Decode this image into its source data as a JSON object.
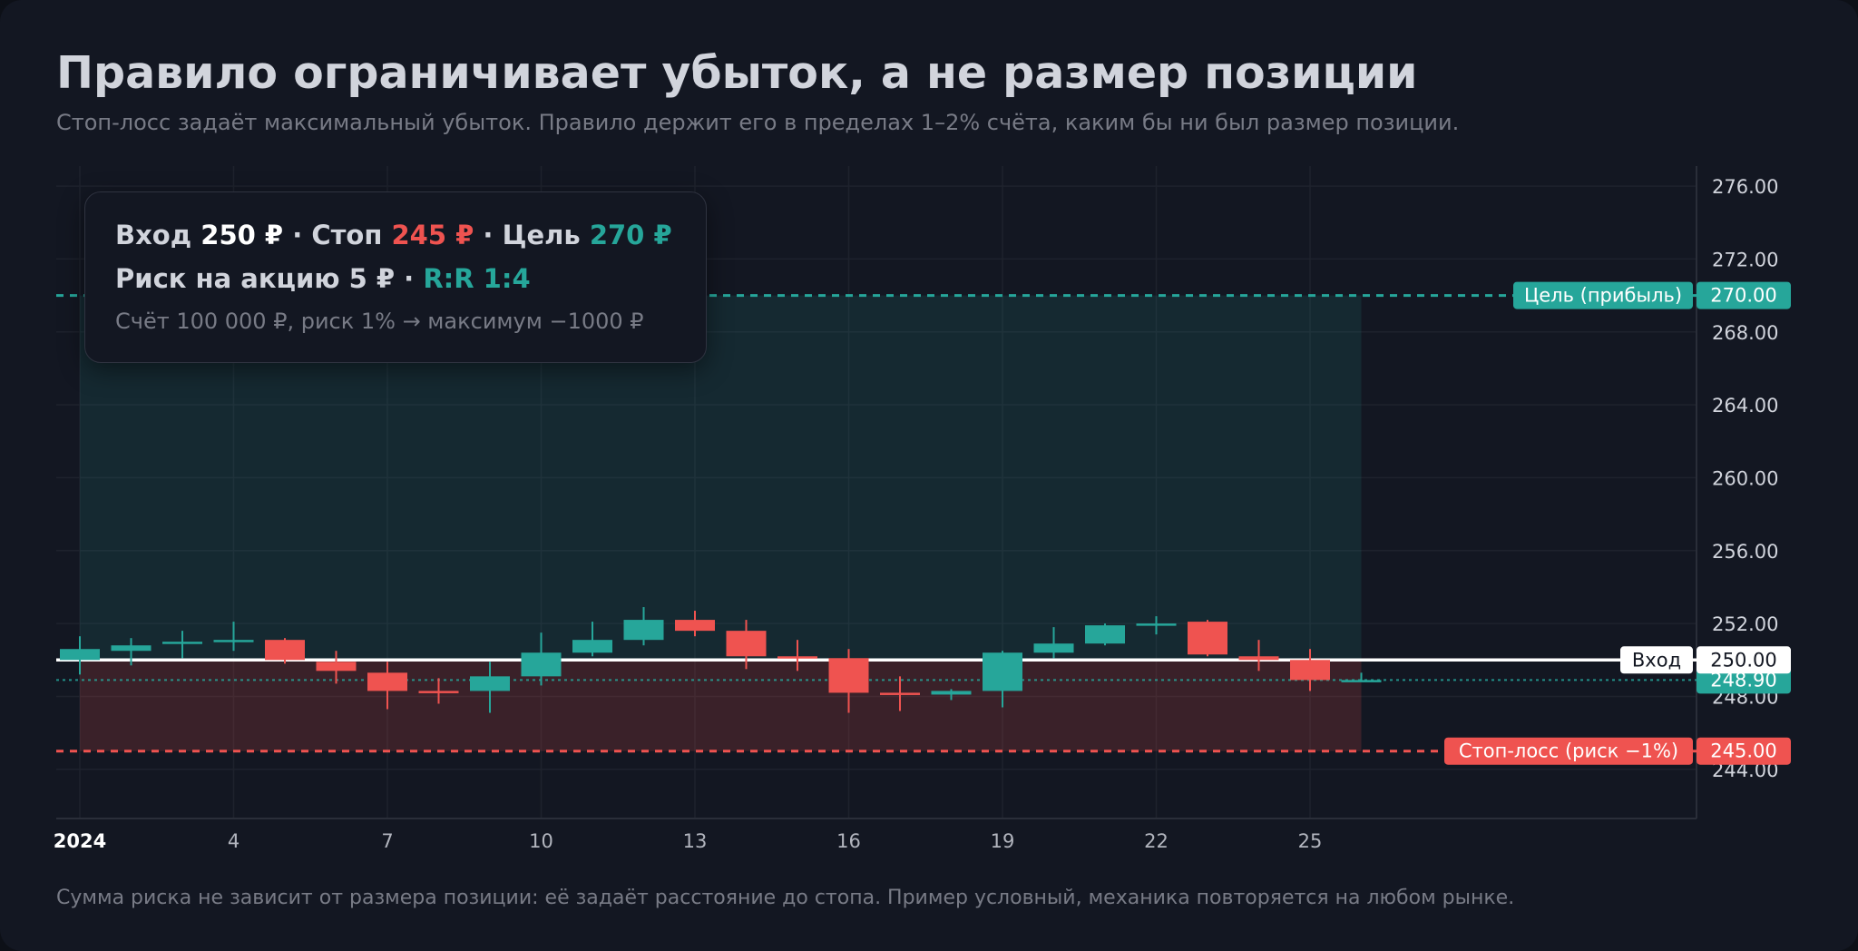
{
  "header": {
    "title": "Правило ограничивает убыток, а не размер позиции",
    "subtitle": "Стоп-лосс задаёт максимальный убыток. Правило держит его в пределах 1–2% счёта, каким бы ни был размер позиции."
  },
  "footer": "Сумма риска не зависит от размера позиции: её задаёт расстояние до стопа. Пример условный, механика повторяется на любом рынке.",
  "info": {
    "entry_label": "Вход",
    "entry_value": "250 ₽",
    "sep": "·",
    "stop_label": "Стоп",
    "stop_value": "245 ₽",
    "target_label": "Цель",
    "target_value": "270 ₽",
    "risk_label": "Риск на акцию 5 ₽",
    "rr": "R:R 1:4",
    "account_note": "Счёт 100 000 ₽, риск 1% → максимум −1000 ₽"
  },
  "colors": {
    "background": "#131722",
    "up": "#26a69a",
    "down": "#ef5350",
    "entry": "#ffffff",
    "text": "#d1d4dc",
    "muted": "#787b86"
  },
  "chart_data": {
    "type": "candlestick",
    "x_axis": {
      "ticks": [
        "2024",
        "4",
        "7",
        "10",
        "13",
        "16",
        "19",
        "22",
        "25"
      ],
      "tick_days": [
        1,
        4,
        7,
        10,
        13,
        16,
        19,
        22,
        25
      ],
      "range_days": [
        1,
        33
      ]
    },
    "y_axis": {
      "range": [
        241.3,
        277.1
      ],
      "ticks": [
        "244.00",
        "248.00",
        "252.00",
        "256.00",
        "260.00",
        "264.00",
        "268.00",
        "272.00",
        "276.00"
      ],
      "tick_values": [
        244,
        248,
        252,
        256,
        260,
        264,
        268,
        272,
        276
      ],
      "position": "right",
      "grid": true
    },
    "candles": [
      {
        "day": 1,
        "o": 250.0,
        "h": 251.3,
        "l": 249.2,
        "c": 250.6
      },
      {
        "day": 2,
        "o": 250.5,
        "h": 251.2,
        "l": 249.7,
        "c": 250.8
      },
      {
        "day": 3,
        "o": 250.9,
        "h": 251.6,
        "l": 250.1,
        "c": 251.0
      },
      {
        "day": 4,
        "o": 251.0,
        "h": 252.1,
        "l": 250.5,
        "c": 251.1
      },
      {
        "day": 5,
        "o": 251.1,
        "h": 251.2,
        "l": 249.8,
        "c": 250.0
      },
      {
        "day": 6,
        "o": 249.9,
        "h": 250.5,
        "l": 248.7,
        "c": 249.4
      },
      {
        "day": 7,
        "o": 249.3,
        "h": 249.9,
        "l": 247.3,
        "c": 248.3
      },
      {
        "day": 8,
        "o": 248.3,
        "h": 249.0,
        "l": 247.6,
        "c": 248.2
      },
      {
        "day": 9,
        "o": 248.3,
        "h": 249.9,
        "l": 247.1,
        "c": 249.1
      },
      {
        "day": 10,
        "o": 249.1,
        "h": 251.5,
        "l": 248.6,
        "c": 250.4
      },
      {
        "day": 11,
        "o": 250.4,
        "h": 252.1,
        "l": 250.2,
        "c": 251.1
      },
      {
        "day": 12,
        "o": 251.1,
        "h": 252.9,
        "l": 250.8,
        "c": 252.2
      },
      {
        "day": 13,
        "o": 252.2,
        "h": 252.7,
        "l": 251.3,
        "c": 251.6
      },
      {
        "day": 14,
        "o": 251.6,
        "h": 252.2,
        "l": 249.5,
        "c": 250.2
      },
      {
        "day": 15,
        "o": 250.2,
        "h": 251.1,
        "l": 249.4,
        "c": 250.1
      },
      {
        "day": 16,
        "o": 250.1,
        "h": 250.6,
        "l": 247.1,
        "c": 248.2
      },
      {
        "day": 17,
        "o": 248.2,
        "h": 249.1,
        "l": 247.2,
        "c": 248.1
      },
      {
        "day": 18,
        "o": 248.1,
        "h": 248.4,
        "l": 247.8,
        "c": 248.3
      },
      {
        "day": 19,
        "o": 248.3,
        "h": 250.5,
        "l": 247.4,
        "c": 250.4
      },
      {
        "day": 20,
        "o": 250.4,
        "h": 251.8,
        "l": 250.1,
        "c": 250.9
      },
      {
        "day": 21,
        "o": 250.9,
        "h": 252.0,
        "l": 250.8,
        "c": 251.9
      },
      {
        "day": 22,
        "o": 251.9,
        "h": 252.4,
        "l": 251.4,
        "c": 252.0
      },
      {
        "day": 23,
        "o": 252.1,
        "h": 252.2,
        "l": 250.2,
        "c": 250.3
      },
      {
        "day": 24,
        "o": 250.2,
        "h": 251.1,
        "l": 249.4,
        "c": 250.0
      },
      {
        "day": 25,
        "o": 250.0,
        "h": 250.6,
        "l": 248.3,
        "c": 248.9
      },
      {
        "day": 26,
        "o": 248.9,
        "h": 249.3,
        "l": 248.8,
        "c": 248.9
      }
    ],
    "levels": [
      {
        "name": "target",
        "value": 270.0,
        "label": "Цель (прибыль)",
        "price_label": "270.00",
        "color": "#26a69a",
        "style": "dashed"
      },
      {
        "name": "entry",
        "value": 250.0,
        "label": "Вход",
        "price_label": "250.00",
        "color": "#ffffff",
        "style": "solid"
      },
      {
        "name": "last",
        "value": 248.9,
        "label": "",
        "price_label": "248.90",
        "color": "#26a69a",
        "style": "dotted"
      },
      {
        "name": "stop",
        "value": 245.0,
        "label": "Стоп-лосс (риск −1%)",
        "price_label": "245.00",
        "color": "#ef5350",
        "style": "dashed"
      }
    ],
    "zones": [
      {
        "name": "profit-zone",
        "from": 250.0,
        "to": 270.0,
        "day_start": 1,
        "day_end": 26,
        "color": "#26a69a"
      },
      {
        "name": "loss-zone",
        "from": 245.0,
        "to": 250.0,
        "day_start": 1,
        "day_end": 26,
        "color": "#ef5350"
      }
    ]
  }
}
